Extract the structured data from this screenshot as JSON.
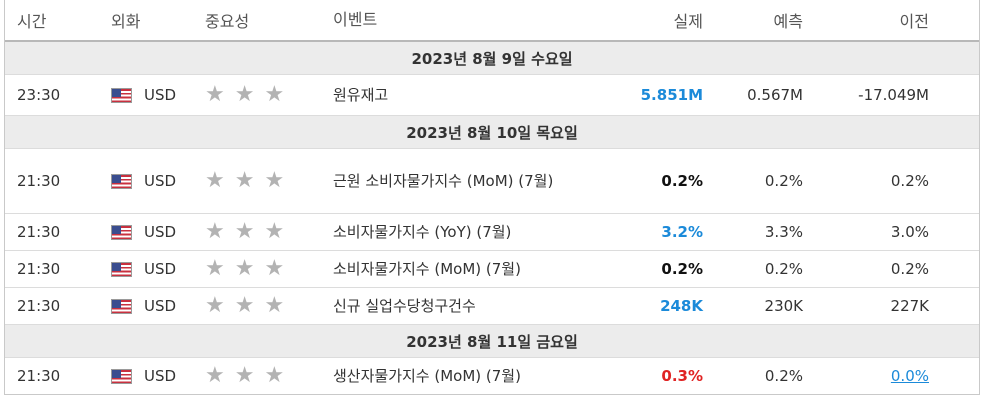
{
  "headers": {
    "time": "시간",
    "currency": "외화",
    "importance": "중요성",
    "event": "이벤트",
    "actual": "실제",
    "forecast": "예측",
    "previous": "이전"
  },
  "dates": {
    "d1": "2023년 8월 9일 수요일",
    "d2": "2023년 8월 10일 목요일",
    "d3": "2023년 8월 11일 금요일"
  },
  "events": [
    {
      "time": "23:30",
      "currency": "USD",
      "stars": 3,
      "event": "원유재고",
      "actual": "5.851M",
      "actual_color": "#1b8ad9",
      "forecast": "0.567M",
      "previous": "-17.049M"
    },
    {
      "time": "21:30",
      "currency": "USD",
      "stars": 3,
      "event": "근원 소비자물가지수 (MoM) (7월)",
      "actual": "0.2%",
      "actual_color": "#111111",
      "forecast": "0.2%",
      "previous": "0.2%"
    },
    {
      "time": "21:30",
      "currency": "USD",
      "stars": 3,
      "event": "소비자물가지수 (YoY) (7월)",
      "actual": "3.2%",
      "actual_color": "#1b8ad9",
      "forecast": "3.3%",
      "previous": "3.0%"
    },
    {
      "time": "21:30",
      "currency": "USD",
      "stars": 3,
      "event": "소비자물가지수 (MoM) (7월)",
      "actual": "0.2%",
      "actual_color": "#111111",
      "forecast": "0.2%",
      "previous": "0.2%"
    },
    {
      "time": "21:30",
      "currency": "USD",
      "stars": 3,
      "event": "신규 실업수당청구건수",
      "actual": "248K",
      "actual_color": "#1b8ad9",
      "forecast": "230K",
      "previous": "227K"
    },
    {
      "time": "21:30",
      "currency": "USD",
      "stars": 3,
      "event": "생산자물가지수 (MoM) (7월)",
      "actual": "0.3%",
      "actual_color": "#e02424",
      "forecast": "0.2%",
      "previous": "0.0%"
    }
  ],
  "icons": {
    "flag": "us-flag-icon",
    "star": "star-icon"
  }
}
